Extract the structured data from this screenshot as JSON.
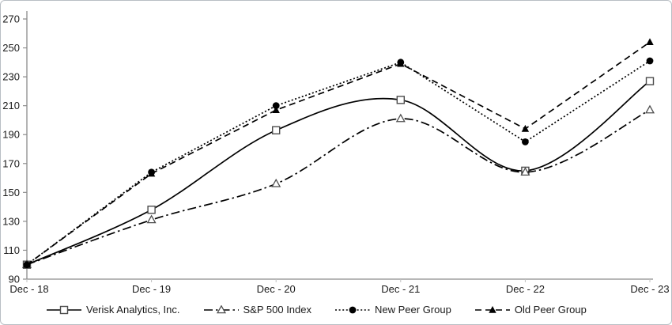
{
  "frame": {
    "background": "#ffffff",
    "border_color": "#b9bec4"
  },
  "chart_data": {
    "type": "line",
    "title": "",
    "xlabel": "",
    "ylabel": "",
    "categories": [
      "Dec - 18",
      "Dec - 19",
      "Dec - 20",
      "Dec - 21",
      "Dec - 22",
      "Dec - 23"
    ],
    "y_axis": {
      "min": 90,
      "max": 270,
      "tick_step": 20,
      "ticks": [
        270,
        250,
        230,
        210,
        190,
        170,
        150,
        130,
        110,
        90
      ]
    },
    "series": [
      {
        "name": "Verisk Analytics, Inc.",
        "values": [
          100,
          138,
          193,
          214,
          165,
          227
        ],
        "line_style": "solid",
        "smooth": true,
        "marker": "open-square",
        "color": "#000000",
        "marker_stroke": "#4d4d4d"
      },
      {
        "name": "S&P 500 Index",
        "values": [
          100,
          131,
          156,
          201,
          164,
          207
        ],
        "line_style": "dash-dot",
        "smooth": true,
        "marker": "open-triangle",
        "color": "#000000",
        "marker_stroke": "#4d4d4d"
      },
      {
        "name": "New Peer Group",
        "values": [
          100,
          164,
          210,
          240,
          185,
          241
        ],
        "line_style": "dotted",
        "smooth": false,
        "marker": "filled-circle",
        "color": "#000000",
        "marker_stroke": "#000000"
      },
      {
        "name": "Old Peer Group",
        "values": [
          100,
          163,
          207,
          239,
          194,
          254
        ],
        "line_style": "dashed",
        "smooth": false,
        "marker": "filled-triangle",
        "color": "#000000",
        "marker_stroke": "#000000"
      }
    ],
    "legend_position": "bottom",
    "grid": false,
    "axis_color": "#8c8c8c",
    "text_color": "#1a1a1a"
  }
}
